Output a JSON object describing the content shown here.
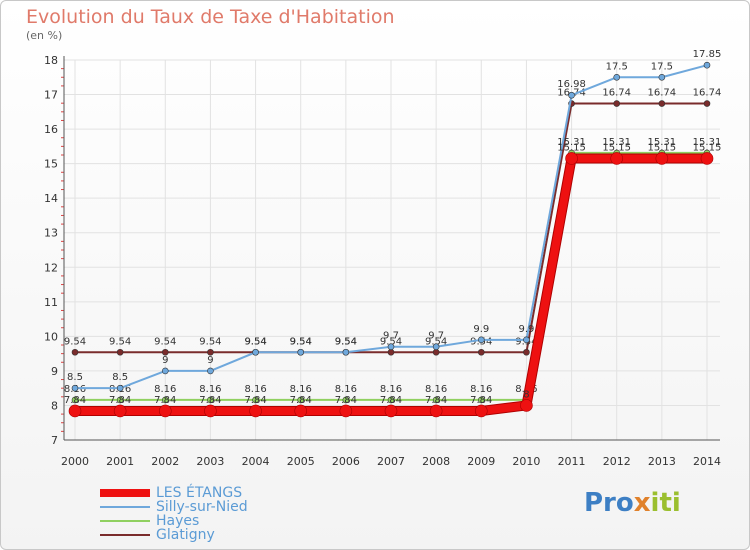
{
  "title": "Evolution du Taux de Taxe d'Habitation",
  "subtitle": "(en %)",
  "logo": {
    "part1": "Pro",
    "part2": "x",
    "part3": "iti"
  },
  "chart_data": {
    "type": "line",
    "x": [
      "2000",
      "2001",
      "2002",
      "2003",
      "2004",
      "2005",
      "2006",
      "2007",
      "2008",
      "2009",
      "2010",
      "2011",
      "2012",
      "2013",
      "2014"
    ],
    "ylim": [
      7,
      18
    ],
    "yticks": [
      "7",
      "8",
      "9",
      "10",
      "11",
      "12",
      "13",
      "14",
      "15",
      "16",
      "17",
      "18"
    ],
    "grid": true,
    "legend_position": "bottom-left",
    "series": [
      {
        "name": "Glatigny",
        "color": "#7a2c2c",
        "width": 2,
        "values": [
          9.54,
          9.54,
          9.54,
          9.54,
          9.54,
          9.54,
          9.54,
          9.54,
          9.54,
          9.54,
          9.54,
          16.74,
          16.74,
          16.74,
          16.74
        ],
        "labels": [
          "9.54",
          "9.54",
          "9.54",
          "9.54",
          "9.54",
          "9.54",
          "9.54",
          "9.54",
          "9.54",
          "9.54",
          "9.54",
          "16.74",
          "16.74",
          "16.74",
          "16.74"
        ]
      },
      {
        "name": "Hayes",
        "color": "#90d060",
        "width": 2,
        "values": [
          8.16,
          8.16,
          8.16,
          8.16,
          8.16,
          8.16,
          8.16,
          8.16,
          8.16,
          8.16,
          8.16,
          15.31,
          15.31,
          15.31,
          15.31
        ],
        "labels": [
          "8.16",
          "8.16",
          "8.16",
          "8.16",
          "8.16",
          "8.16",
          "8.16",
          "8.16",
          "8.16",
          "8.16",
          "8.16",
          "15.31",
          "15.31",
          "15.31",
          "15.31"
        ]
      },
      {
        "name": "Silly-sur-Nied",
        "color": "#6fa8dc",
        "width": 2,
        "values": [
          8.5,
          8.5,
          9,
          9,
          9.54,
          9.54,
          9.54,
          9.7,
          9.7,
          9.9,
          9.9,
          16.98,
          17.5,
          17.5,
          17.85
        ],
        "labels": [
          "8.5",
          "8.5",
          "9",
          "9",
          "9.54",
          "9.54",
          "9.54",
          "9.7",
          "9.7",
          "9.9",
          "9.9",
          "16.98",
          "17.5",
          "17.5",
          "17.85"
        ]
      },
      {
        "name": "LES ÉTANGS",
        "color": "#ee1111",
        "width": 8,
        "values": [
          7.84,
          7.84,
          7.84,
          7.84,
          7.84,
          7.84,
          7.84,
          7.84,
          7.84,
          7.84,
          8,
          15.15,
          15.15,
          15.15,
          15.15
        ],
        "labels": [
          "7.84",
          "7.84",
          "7.84",
          "7.84",
          "7.84",
          "7.84",
          "7.84",
          "7.84",
          "7.84",
          "7.84",
          "8",
          "15.15",
          "15.15",
          "15.15",
          "15.15"
        ]
      }
    ],
    "legend": [
      "LES ÉTANGS",
      "Silly-sur-Nied",
      "Hayes",
      "Glatigny"
    ]
  }
}
